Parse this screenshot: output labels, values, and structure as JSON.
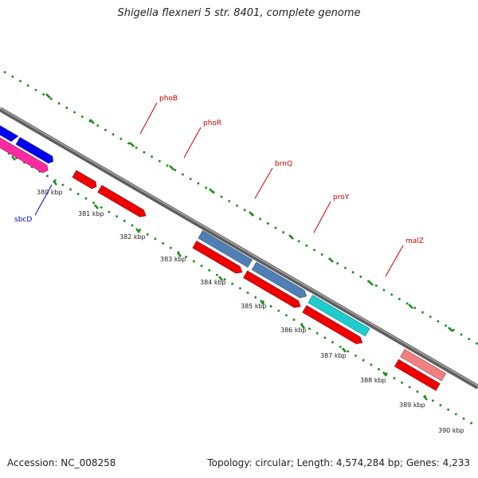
{
  "title": "Shigella flexneri 5 str. 8401, complete genome",
  "accession": "Accession: NC_008258",
  "summary": "Topology: circular; Length: 4,574,284 bp; Genes: 4,233",
  "colors": {
    "backbone": "#808080",
    "ruler": "#1a8c1a",
    "forward_label": "#cc0000",
    "reverse_label": "#0000cc",
    "blue_feature": "#0000ee",
    "pink_feature": "#ff2aa0",
    "red_feature": "#ee0000",
    "steelblue_feature": "#4f7fb5",
    "cyan_feature": "#1ecccc",
    "salmon_feature": "#f08080"
  },
  "ticks": [
    "380 kbp",
    "381 kbp",
    "382 kbp",
    "383 kbp",
    "384 kbp",
    "385 kbp",
    "386 kbp",
    "387 kbp",
    "388 kbp",
    "389 kbp",
    "390 kbp"
  ],
  "genes": {
    "sbcD": "sbcD",
    "phoB": "phoB",
    "phoR": "phoR",
    "brnQ": "brnQ",
    "proY": "proY",
    "malZ": "malZ"
  }
}
